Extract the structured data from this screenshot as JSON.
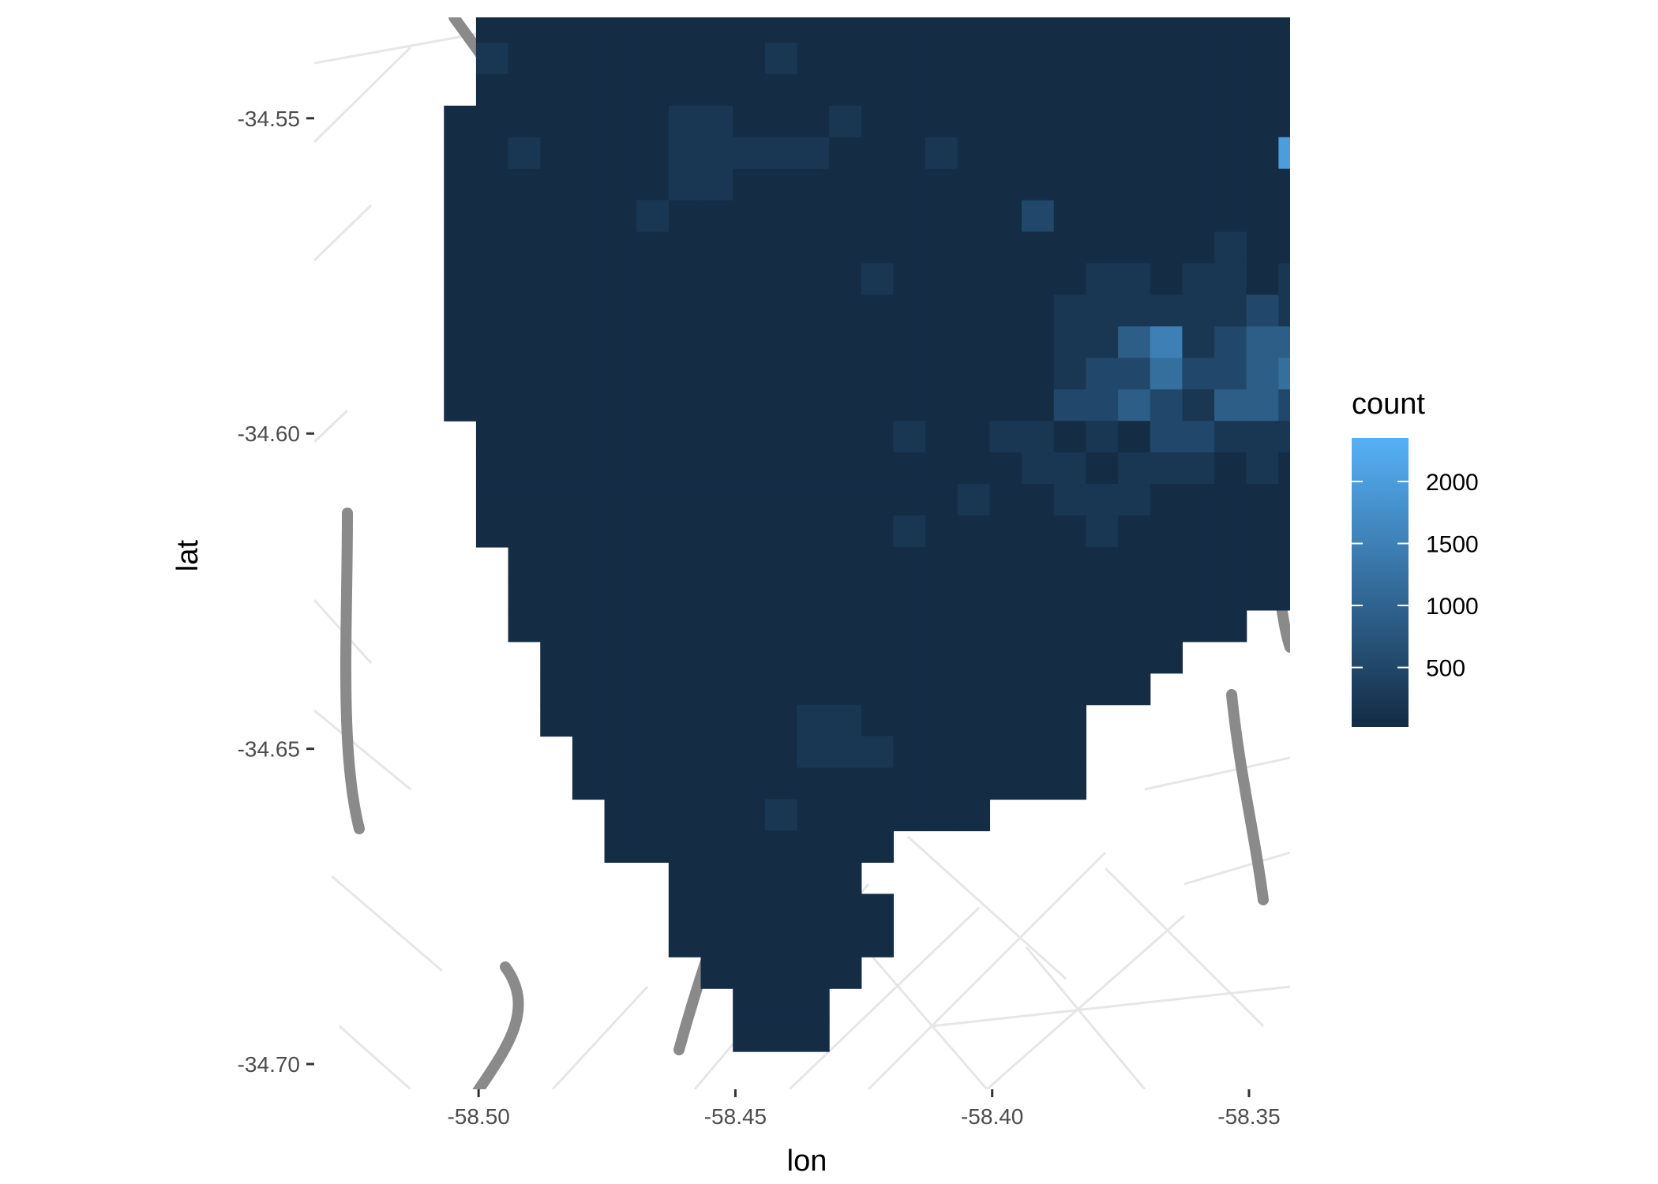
{
  "chart_data": {
    "type": "heatmap",
    "title": "",
    "xlabel": "lon",
    "ylabel": "lat",
    "x_ticks": [
      -58.5,
      -58.45,
      -58.4,
      -58.35
    ],
    "x_tick_labels": [
      "-58.50",
      "-58.45",
      "-58.40",
      "-58.35"
    ],
    "y_ticks": [
      -34.55,
      -34.6,
      -34.65,
      -34.7
    ],
    "y_tick_labels": [
      "-34.55",
      "-34.60",
      "-34.65",
      "-34.70"
    ],
    "xlim": [
      -58.532,
      -58.342
    ],
    "ylim": [
      -34.704,
      -34.534
    ],
    "grid": false,
    "background": "grayscale street map",
    "legend": {
      "title": "count",
      "placement": "right",
      "ticks": [
        500,
        1000,
        1500,
        2000
      ],
      "tick_labels": [
        "500",
        "1000",
        "1500",
        "2000"
      ],
      "range": [
        20,
        2350
      ],
      "color_low": "#132B43",
      "color_high": "#56B1F7"
    },
    "bins": {
      "x0": -58.5255,
      "y0": -34.703,
      "dx": 0.00625,
      "dy": 0.005,
      "cells": [
        "..........................................",
        ".........0000.............................",
        "........0000000...........................",
        "........00000000..........................",
        "........0010000...........................",
        ".......000000100..........................",
        ".......0000010000.........................",
        ".......0000010000.........................",
        "......000000000000........................",
        "......0000000000000.......................",
        ".....001000000000000......................",
        ".....00000000000000000000.................",
        ".....00000000001000000000.................",
        "....0000000000000000000000................",
        "....00000000000000000000000000000.........",
        "....000000000000000000000000000000........",
        "....1000000001000000000000000000000.......",
        "....00000000000000000000000000000000......",
        "...000000011000100000000000000000000......",
        "...001000011111000100000000006000000......",
        "...00000001100000000000000000000000000....",
        "...00000010000000000020000000000000000....",
        "...00000000000000000000000010000000000....",
        "...000000000000010000001101101001000000...",
        "...00000000000000000001111112111000000....",
        "...0000000000000000000113512337200000.....",
        "...000000000000000000012242234453200......",
        "...00000000000000000002232133233200.......",
        "....000000000000010011010221110110........",
        "....0000000000000000011011101001100.......",
        "....0000000000000001001110000010000.......",
        "....0000000000000100000100000000000.......",
        ".....000000000000000000000000000..........",
        ".....0000000000000000000000000............",
        ".....00000000000000000000000..............",
        "......00000000000000000000................",
        "......0000000000000000000.................",
        "......00000000110000000...................",
        ".......0000000111000000...................",
        ".......0000000000000000...................",
        "........000001000000......................",
        "........000000000.........................",
        "..........000000..........................",
        "..........0000000.........................",
        "..........0000000.........................",
        "...........00000..........................",
        "............000...........................",
        "............000...........................",
        ".........................................."
      ],
      "level_counts": [
        50,
        230,
        520,
        900,
        1200,
        1500,
        2000,
        2300
      ]
    }
  }
}
